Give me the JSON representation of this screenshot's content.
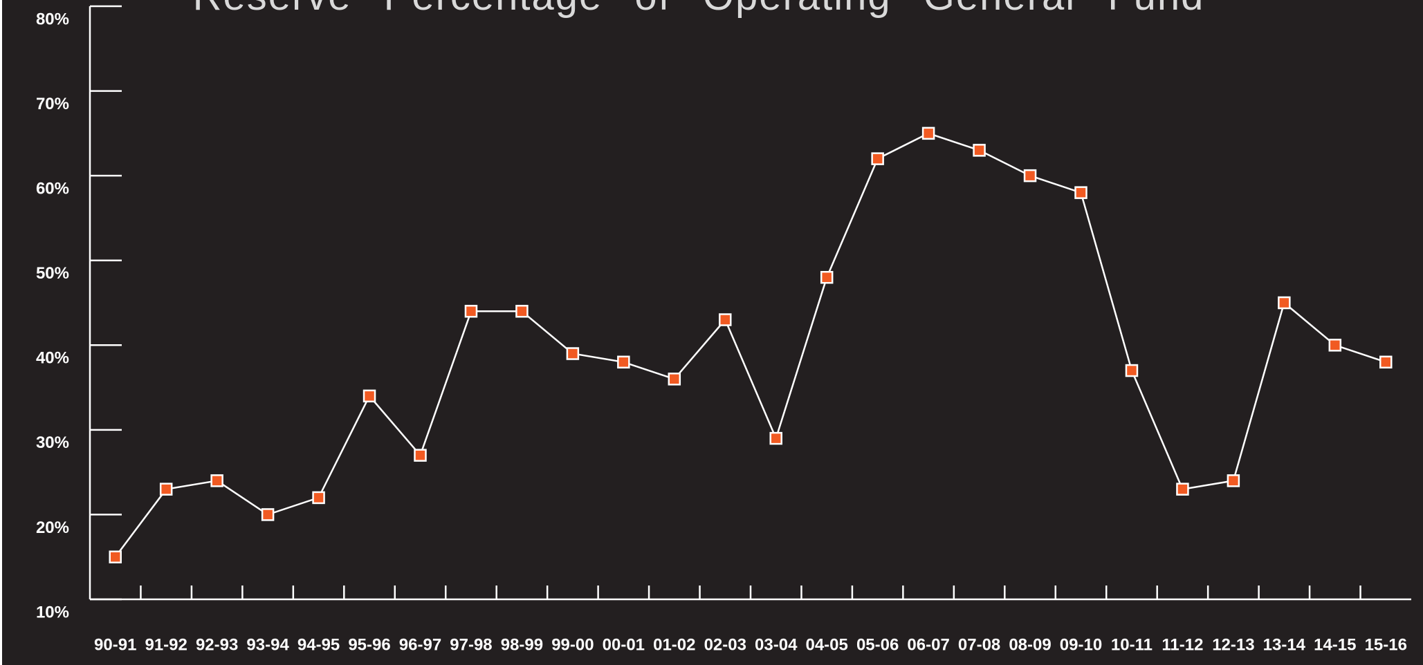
{
  "chart_data": {
    "type": "line",
    "title": "Reserve Percentage of Operating General Fund",
    "categories": [
      "90-91",
      "91-92",
      "92-93",
      "93-94",
      "94-95",
      "95-96",
      "96-97",
      "97-98",
      "98-99",
      "99-00",
      "00-01",
      "01-02",
      "02-03",
      "03-04",
      "04-05",
      "05-06",
      "06-07",
      "07-08",
      "08-09",
      "09-10",
      "10-11",
      "11-12",
      "12-13",
      "13-14",
      "14-15",
      "15-16"
    ],
    "series": [
      {
        "name": "Reserve Percentage",
        "color": "#f15a22",
        "values": [
          15,
          23,
          24,
          20,
          22,
          34,
          27,
          44,
          44,
          39,
          38,
          36,
          43,
          29,
          48,
          62,
          65,
          63,
          60,
          58,
          37,
          23,
          24,
          45,
          40,
          38
        ]
      }
    ],
    "ylim": [
      10,
      80
    ],
    "yticks": [
      {
        "value": 10,
        "label": "10%"
      },
      {
        "value": 20,
        "label": "20%"
      },
      {
        "value": 30,
        "label": "30%"
      },
      {
        "value": 40,
        "label": "40%"
      },
      {
        "value": 50,
        "label": "50%"
      },
      {
        "value": 60,
        "label": "60%"
      },
      {
        "value": 70,
        "label": "70%"
      },
      {
        "value": 80,
        "label": "80%"
      }
    ]
  }
}
